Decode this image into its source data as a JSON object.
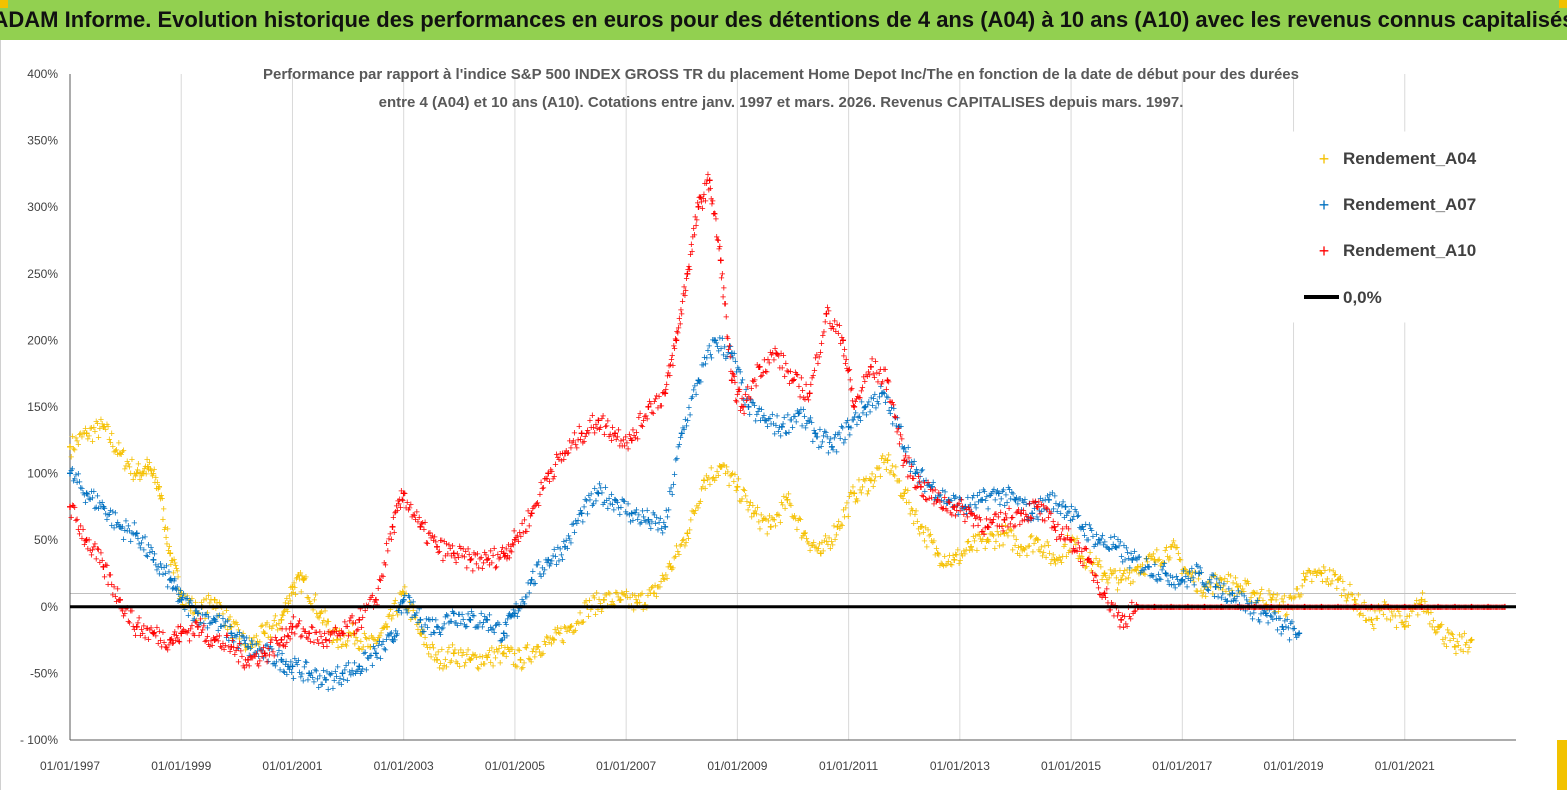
{
  "header": {
    "title": "ADAM Informe. Evolution historique des performances en euros pour des détentions de 4 ans (A04) à 10 ans (A10) avec les revenus connus capitalisés"
  },
  "colors": {
    "header_bg": "#92d050",
    "series_A04": "#f5c000",
    "series_A07": "#0070c0",
    "series_A10": "#ff0000",
    "zero_line": "#000000",
    "grid": "#d9d9d9"
  },
  "chart_data": {
    "type": "scatter",
    "title_line1": "Performance par rapport à l'indice S&P 500 INDEX GROSS TR  du placement Home Depot Inc/The en fonction de la date de début pour des durées",
    "title_line2": "entre 4 (A04) et 10 ans (A10). Cotations entre janv. 1997 et mars. 2026. Revenus CAPITALISES depuis mars. 1997.",
    "x_unit": "year",
    "xlim": [
      1997.0,
      2023.0
    ],
    "ylim": [
      -100,
      400
    ],
    "y_ticks": [
      400,
      350,
      300,
      250,
      200,
      150,
      100,
      50,
      0,
      -50,
      -100
    ],
    "y_tick_labels": [
      "400%",
      "350%",
      "300%",
      "250%",
      "200%",
      "150%",
      "100%",
      "50%",
      "0%",
      "-50%",
      "- 100%"
    ],
    "x_ticks": [
      1997,
      1999,
      2001,
      2003,
      2005,
      2007,
      2009,
      2011,
      2013,
      2015,
      2017,
      2019,
      2021
    ],
    "x_tick_labels": [
      "01/01/1997",
      "01/01/1999",
      "01/01/2001",
      "01/01/2003",
      "01/01/2005",
      "01/01/2007",
      "01/01/2009",
      "01/01/2011",
      "01/01/2013",
      "01/01/2015",
      "01/01/2017",
      "01/01/2019",
      "01/01/2021"
    ],
    "series": [
      {
        "name": "Rendement_A04",
        "x": [
          1997.0,
          1997.3,
          1997.6,
          1997.9,
          1998.2,
          1998.4,
          1998.6,
          1998.8,
          1999.0,
          1999.3,
          1999.6,
          1999.9,
          2000.2,
          2000.5,
          2000.8,
          2001.0,
          2001.2,
          2001.5,
          2001.8,
          2002.1,
          2002.4,
          2002.7,
          2003.0,
          2003.3,
          2003.6,
          2003.9,
          2004.2,
          2004.5,
          2004.8,
          2005.1,
          2005.4,
          2005.7,
          2006.0,
          2006.3,
          2006.6,
          2006.9,
          2007.2,
          2007.5,
          2007.8,
          2008.1,
          2008.4,
          2008.7,
          2009.0,
          2009.3,
          2009.6,
          2009.9,
          2010.2,
          2010.5,
          2010.8,
          2011.1,
          2011.4,
          2011.7,
          2012.0,
          2012.3,
          2012.6,
          2012.9,
          2013.2,
          2013.5,
          2013.8,
          2014.1,
          2014.4,
          2014.7,
          2015.0,
          2015.3,
          2015.6,
          2015.9,
          2016.2,
          2016.5,
          2016.8,
          2017.1,
          2017.4,
          2017.7,
          2018.0,
          2018.3,
          2018.6,
          2018.9,
          2019.2,
          2019.5,
          2019.8,
          2020.1,
          2020.4,
          2020.7,
          2021.0,
          2021.3,
          2021.6,
          2021.9,
          2022.2
        ],
        "y": [
          120,
          130,
          135,
          115,
          100,
          105,
          90,
          40,
          10,
          -5,
          5,
          -15,
          -30,
          -20,
          -10,
          15,
          20,
          -5,
          -25,
          -20,
          -30,
          -15,
          10,
          -20,
          -40,
          -35,
          -40,
          -38,
          -35,
          -40,
          -30,
          -25,
          -15,
          0,
          5,
          5,
          3,
          10,
          30,
          55,
          95,
          105,
          90,
          70,
          60,
          80,
          55,
          40,
          60,
          85,
          95,
          110,
          85,
          60,
          40,
          35,
          45,
          50,
          55,
          45,
          50,
          35,
          50,
          35,
          25,
          20,
          30,
          35,
          45,
          25,
          15,
          20,
          15,
          10,
          5,
          0,
          20,
          25,
          20,
          5,
          -10,
          0,
          -15,
          5,
          -15,
          -30,
          -25
        ]
      },
      {
        "name": "Rendement_A07",
        "x": [
          1997.0,
          1997.3,
          1997.6,
          1997.9,
          1998.2,
          1998.5,
          1998.8,
          1999.0,
          1999.3,
          1999.6,
          1999.9,
          2000.2,
          2000.5,
          2000.8,
          2001.0,
          2001.3,
          2001.6,
          2001.9,
          2002.2,
          2002.5,
          2002.8,
          2003.0,
          2003.3,
          2003.6,
          2003.9,
          2004.2,
          2004.5,
          2004.8,
          2005.0,
          2005.3,
          2005.6,
          2005.9,
          2006.2,
          2006.5,
          2006.8,
          2007.1,
          2007.4,
          2007.7,
          2008.0,
          2008.3,
          2008.6,
          2008.9,
          2009.2,
          2009.5,
          2009.8,
          2010.1,
          2010.4,
          2010.7,
          2011.0,
          2011.3,
          2011.6,
          2011.9,
          2012.2,
          2012.5,
          2012.8,
          2013.1,
          2013.4,
          2013.7,
          2014.0,
          2014.3,
          2014.6,
          2014.9,
          2015.2,
          2015.5,
          2015.8,
          2016.1,
          2016.4,
          2016.7,
          2017.0,
          2017.3,
          2017.6,
          2017.9,
          2018.2,
          2018.5,
          2018.8,
          2019.1
        ],
        "y": [
          100,
          85,
          75,
          60,
          55,
          35,
          20,
          5,
          -5,
          -10,
          -20,
          -30,
          -35,
          -40,
          -45,
          -50,
          -55,
          -50,
          -45,
          -35,
          -25,
          5,
          -10,
          -15,
          -5,
          -10,
          -10,
          -20,
          -5,
          20,
          35,
          45,
          70,
          85,
          80,
          70,
          65,
          60,
          130,
          170,
          200,
          190,
          150,
          140,
          135,
          145,
          130,
          120,
          135,
          150,
          160,
          135,
          100,
          90,
          80,
          75,
          80,
          85,
          80,
          70,
          80,
          75,
          60,
          50,
          45,
          35,
          30,
          25,
          20,
          25,
          15,
          10,
          0,
          -5,
          -15,
          -20
        ]
      },
      {
        "name": "Rendement_A10",
        "x": [
          1997.0,
          1997.3,
          1997.6,
          1997.9,
          1998.2,
          1998.5,
          1998.8,
          1999.0,
          1999.3,
          1999.6,
          1999.9,
          2000.2,
          2000.5,
          2000.8,
          2001.0,
          2001.3,
          2001.6,
          2001.9,
          2002.2,
          2002.5,
          2002.8,
          2003.0,
          2003.3,
          2003.6,
          2003.9,
          2004.2,
          2004.5,
          2004.8,
          2005.0,
          2005.3,
          2005.6,
          2005.9,
          2006.2,
          2006.5,
          2006.8,
          2007.1,
          2007.4,
          2007.7,
          2007.9,
          2008.1,
          2008.3,
          2008.5,
          2008.7,
          2008.9,
          2009.1,
          2009.4,
          2009.7,
          2010.0,
          2010.3,
          2010.6,
          2010.9,
          2011.1,
          2011.4,
          2011.7,
          2012.0,
          2012.3,
          2012.6,
          2012.9,
          2013.2,
          2013.5,
          2013.8,
          2014.1,
          2014.4,
          2014.7,
          2015.0,
          2015.3,
          2015.6,
          2015.9,
          2016.2,
          2016.5,
          2016.8,
          2017.1,
          2017.4,
          2017.7,
          2018.0,
          2018.3,
          2018.6,
          2018.9,
          2019.2,
          2019.5,
          2019.8,
          2020.1,
          2020.4,
          2020.7,
          2021.0,
          2021.3,
          2021.6,
          2021.9,
          2022.2,
          2022.5,
          2022.8
        ],
        "y": [
          75,
          50,
          30,
          5,
          -15,
          -20,
          -25,
          -20,
          -15,
          -25,
          -30,
          -40,
          -35,
          -25,
          -15,
          -20,
          -25,
          -20,
          -10,
          5,
          60,
          85,
          60,
          45,
          40,
          35,
          35,
          40,
          50,
          70,
          100,
          115,
          130,
          140,
          130,
          125,
          150,
          160,
          200,
          250,
          300,
          320,
          260,
          170,
          150,
          180,
          190,
          170,
          160,
          220,
          200,
          150,
          180,
          170,
          110,
          90,
          80,
          75,
          70,
          60,
          65,
          70,
          75,
          60,
          50,
          35,
          10,
          -10,
          0,
          0,
          0,
          0,
          0,
          0,
          0,
          0,
          0,
          0,
          0,
          0,
          0,
          0,
          0,
          0,
          0,
          0,
          0,
          0,
          0,
          0,
          0
        ]
      }
    ],
    "reference_line": {
      "name": "0,0%",
      "y": 0
    },
    "legend": [
      "Rendement_A04",
      "Rendement_A07",
      "Rendement_A10",
      "0,0%"
    ],
    "legend_position": "top-right",
    "grid": "vertical-only"
  }
}
